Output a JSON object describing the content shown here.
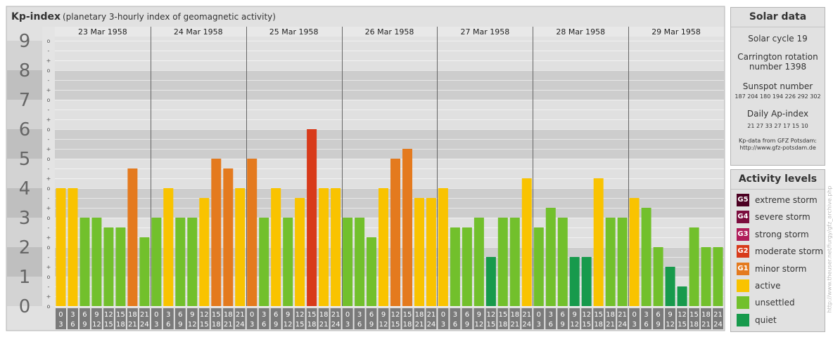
{
  "header": {
    "title": "Kp-index",
    "subtitle": "(planetary 3-hourly index of geomagnetic activity)"
  },
  "solar": {
    "title": "Solar data",
    "cycle": "Solar cycle 19",
    "carrington": "Carrington rotation number 1398",
    "sunspot_title": "Sunspot number",
    "sunspot_values": "187 204 180 194 226 292 302",
    "ap_title": "Daily Ap-index",
    "ap_values": "21 27 33 27 17 15 10",
    "credit": "Kp-data from GFZ Potsdam: http://www.gfz-potsdam.de"
  },
  "activity": {
    "title": "Activity levels",
    "items": [
      {
        "badge": "G5",
        "label": "extreme storm",
        "color": "#4c0022"
      },
      {
        "badge": "G4",
        "label": "severe storm",
        "color": "#7b0d3e"
      },
      {
        "badge": "G3",
        "label": "strong storm",
        "color": "#b01c5a"
      },
      {
        "badge": "G2",
        "label": "moderate storm",
        "color": "#d83a1a"
      },
      {
        "badge": "G1",
        "label": "minor storm",
        "color": "#e47a1e"
      },
      {
        "badge": "",
        "label": "active",
        "color": "#f9c300"
      },
      {
        "badge": "",
        "label": "unsettled",
        "color": "#72c02c"
      },
      {
        "badge": "",
        "label": "quiet",
        "color": "#179a4c"
      }
    ]
  },
  "side_credit": "http://www.theuser.net/furgy/gfz_archive.php",
  "chart_data": {
    "type": "bar",
    "ylim": [
      0,
      9
    ],
    "yticks": [
      "0",
      "1",
      "2",
      "3",
      "4",
      "5",
      "6",
      "7",
      "8",
      "9"
    ],
    "minor_tick_labels": [
      "o",
      "+",
      "-"
    ],
    "days": [
      "23 Mar 1958",
      "24 Mar 1958",
      "25 Mar 1958",
      "26 Mar 1958",
      "27 Mar 1958",
      "28 Mar 1958",
      "29 Mar 1958"
    ],
    "interval_labels": [
      [
        "0",
        "3"
      ],
      [
        "3",
        "6"
      ],
      [
        "6",
        "9"
      ],
      [
        "9",
        "12"
      ],
      [
        "12",
        "15"
      ],
      [
        "15",
        "18"
      ],
      [
        "18",
        "21"
      ],
      [
        "21",
        "24"
      ]
    ],
    "values": [
      4.0,
      4.0,
      3.0,
      3.0,
      2.667,
      2.667,
      4.667,
      2.333,
      3.0,
      4.0,
      3.0,
      3.0,
      3.667,
      5.0,
      4.667,
      4.0,
      5.0,
      3.0,
      4.0,
      3.0,
      3.667,
      6.0,
      4.0,
      4.0,
      3.0,
      3.0,
      2.333,
      4.0,
      5.0,
      5.333,
      3.667,
      3.667,
      4.0,
      2.667,
      2.667,
      3.0,
      1.667,
      3.0,
      3.0,
      4.333,
      2.667,
      3.333,
      3.0,
      1.667,
      1.667,
      4.333,
      3.0,
      3.0,
      3.667,
      3.333,
      2.0,
      1.333,
      0.667,
      2.667,
      2.0,
      2.0
    ],
    "level_colors": {
      "quiet": "#179a4c",
      "unsettled": "#72c02c",
      "active": "#f9c300",
      "minor_storm": "#e47a1e",
      "moderate_storm": "#d83a1a"
    },
    "grid": true
  }
}
